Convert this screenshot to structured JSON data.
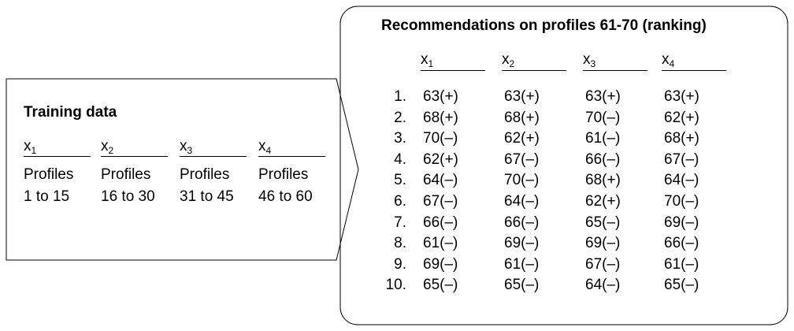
{
  "training": {
    "title": "Training data",
    "columns": [
      {
        "var": "x",
        "sub": "1",
        "line1": "Profiles",
        "line2": "1 to 15"
      },
      {
        "var": "x",
        "sub": "2",
        "line1": "Profiles",
        "line2": "16 to 30"
      },
      {
        "var": "x",
        "sub": "3",
        "line1": "Profiles",
        "line2": "31 to 45"
      },
      {
        "var": "x",
        "sub": "4",
        "line1": "Profiles",
        "line2": "46 to 60"
      }
    ]
  },
  "recommendations": {
    "title": "Recommendations on profiles 61-70 (ranking)",
    "headers": [
      {
        "var": "x",
        "sub": "1"
      },
      {
        "var": "x",
        "sub": "2"
      },
      {
        "var": "x",
        "sub": "3"
      },
      {
        "var": "x",
        "sub": "4"
      }
    ],
    "ranks": [
      "1.",
      "2.",
      "3.",
      "4.",
      "5.",
      "6.",
      "7.",
      "8.",
      "9.",
      "10."
    ],
    "rows": [
      [
        "63(+)",
        "63(+)",
        "63(+)",
        "63(+)"
      ],
      [
        "68(+)",
        "68(+)",
        "70(–)",
        "62(+)"
      ],
      [
        "70(–)",
        "62(+)",
        "61(–)",
        "68(+)"
      ],
      [
        "62(+)",
        "67(–)",
        "66(–)",
        "67(–)"
      ],
      [
        "64(–)",
        "70(–)",
        "68(+)",
        "64(–)"
      ],
      [
        "67(–)",
        "64(–)",
        "62(+)",
        "70(–)"
      ],
      [
        "66(–)",
        "66(–)",
        "65(–)",
        "69(–)"
      ],
      [
        "61(–)",
        "69(–)",
        "69(–)",
        "66(–)"
      ],
      [
        "69(–)",
        "61(–)",
        "67(–)",
        "61(–)"
      ],
      [
        "65(–)",
        "65(–)",
        "64(–)",
        "65(–)"
      ]
    ]
  }
}
